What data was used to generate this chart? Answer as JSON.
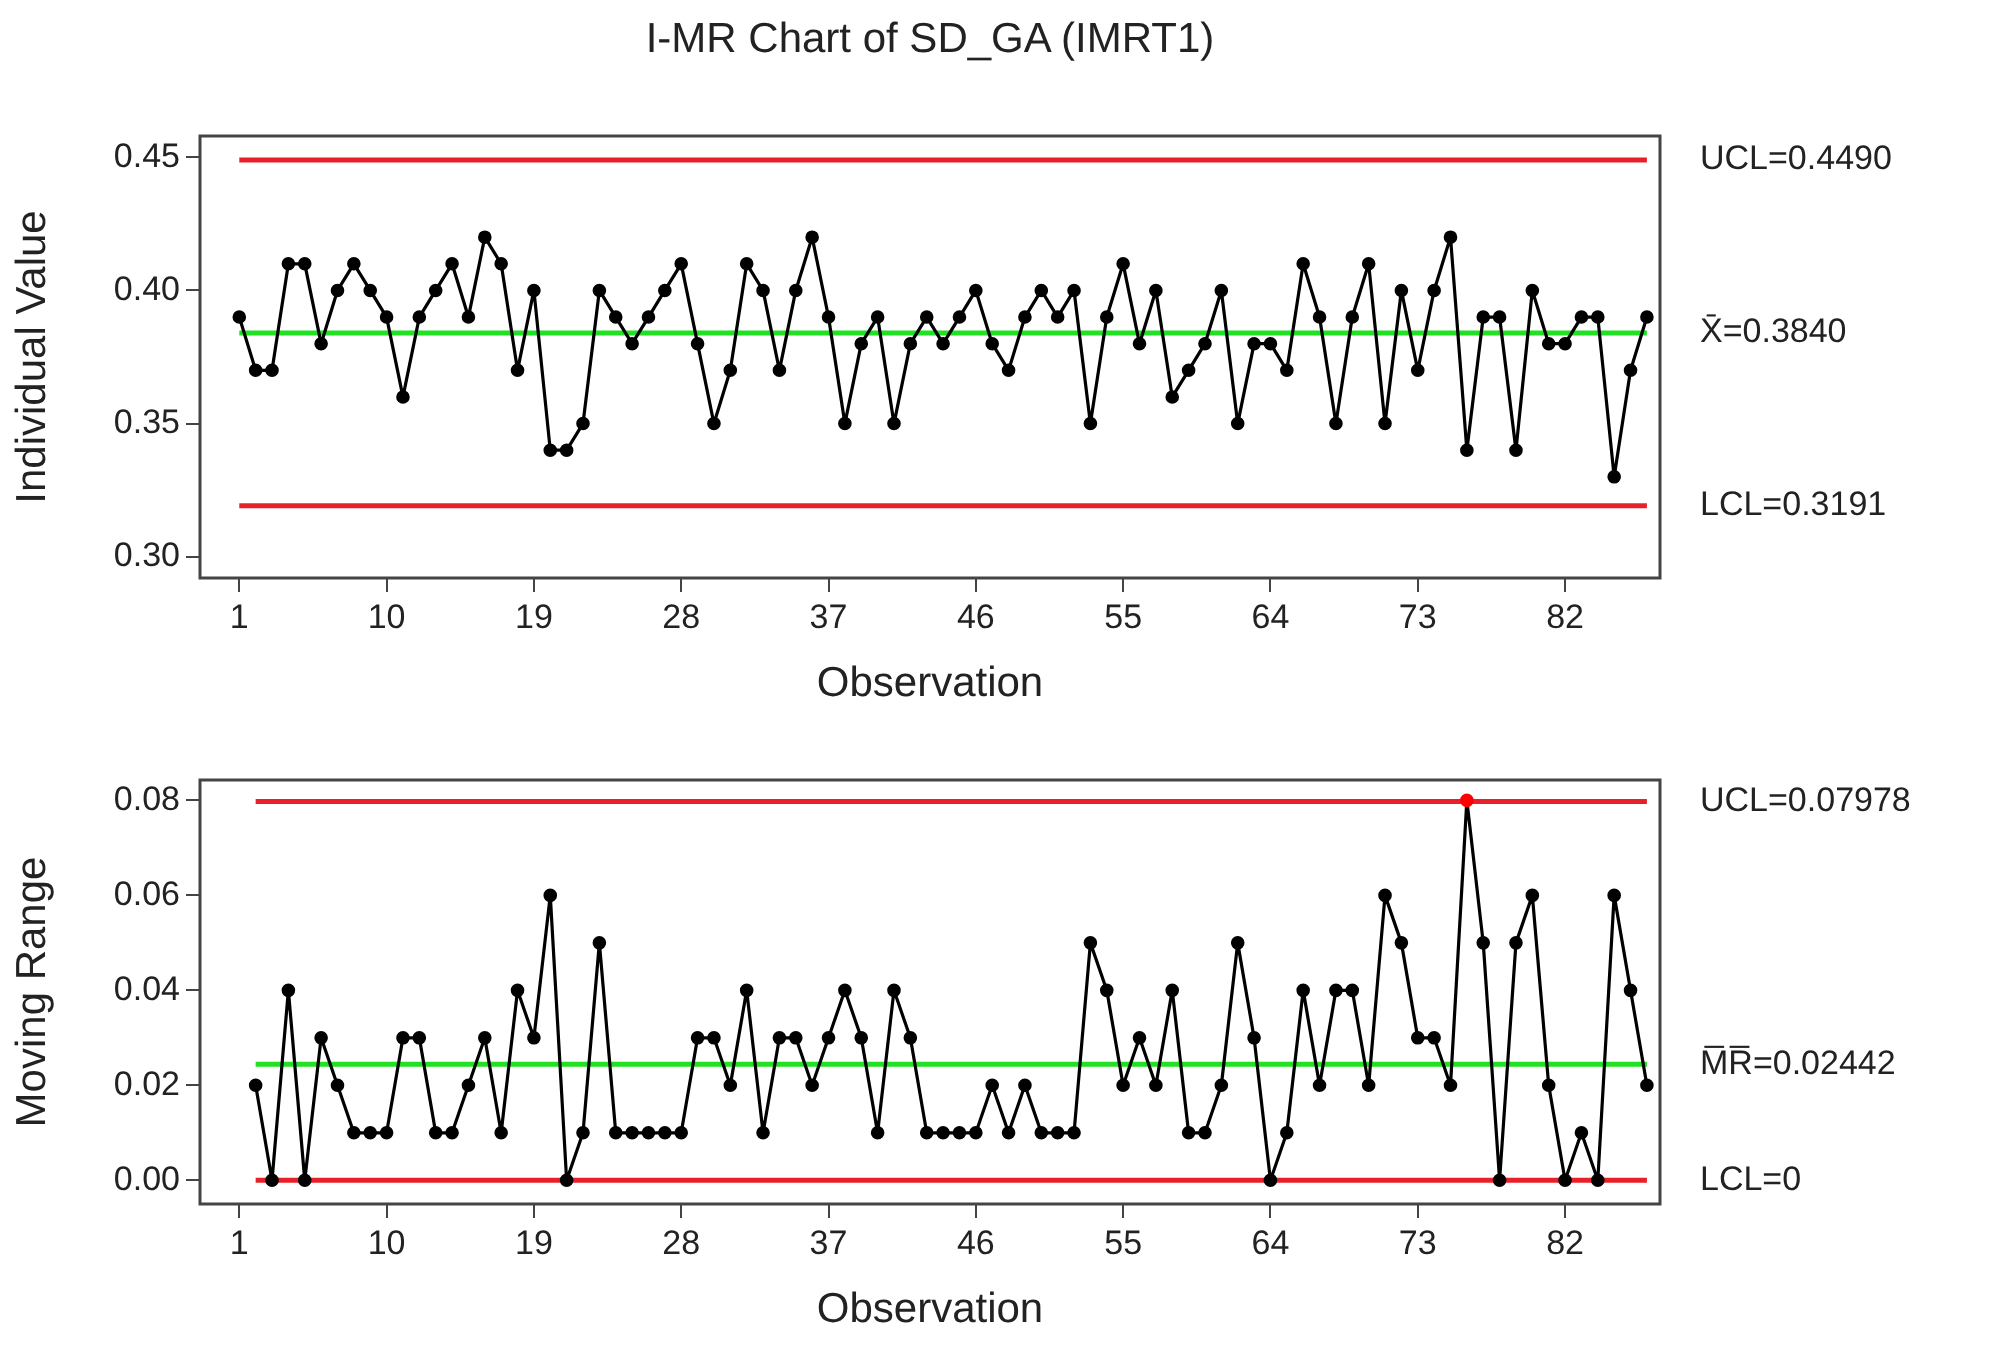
{
  "chart_data": [
    {
      "type": "line",
      "title": "I-MR Chart of SD_GA (IMRT1)",
      "xlabel": "Observation",
      "ylabel": "Individual Value",
      "marker": "circle",
      "line_style": "solid",
      "legend": false,
      "grid": false,
      "xlim": [
        -1.4,
        87.8
      ],
      "xticks": [
        1,
        10,
        19,
        28,
        37,
        46,
        55,
        64,
        73,
        82
      ],
      "ylim": [
        0.292,
        0.458
      ],
      "yticks": [
        {
          "value": 0.3,
          "label": "0.30"
        },
        {
          "value": 0.35,
          "label": "0.35"
        },
        {
          "value": 0.4,
          "label": "0.40"
        },
        {
          "value": 0.45,
          "label": "0.45"
        }
      ],
      "x": [
        1,
        2,
        3,
        4,
        5,
        6,
        7,
        8,
        9,
        10,
        11,
        12,
        13,
        14,
        15,
        16,
        17,
        18,
        19,
        20,
        21,
        22,
        23,
        24,
        25,
        26,
        27,
        28,
        29,
        30,
        31,
        32,
        33,
        34,
        35,
        36,
        37,
        38,
        39,
        40,
        41,
        42,
        43,
        44,
        45,
        46,
        47,
        48,
        49,
        50,
        51,
        52,
        53,
        54,
        55,
        56,
        57,
        58,
        59,
        60,
        61,
        62,
        63,
        64,
        65,
        66,
        67,
        68,
        69,
        70,
        71,
        72,
        73,
        74,
        75,
        76,
        77,
        78,
        79,
        80,
        81,
        82,
        83,
        84,
        85,
        86,
        87
      ],
      "series": [
        {
          "color": "#000000",
          "values": [
            0.39,
            0.37,
            0.37,
            0.41,
            0.41,
            0.38,
            0.4,
            0.41,
            0.4,
            0.39,
            0.36,
            0.39,
            0.4,
            0.41,
            0.39,
            0.42,
            0.41,
            0.37,
            0.4,
            0.34,
            0.34,
            0.35,
            0.4,
            0.39,
            0.38,
            0.39,
            0.4,
            0.41,
            0.38,
            0.35,
            0.37,
            0.41,
            0.4,
            0.37,
            0.4,
            0.42,
            0.39,
            0.35,
            0.38,
            0.39,
            0.35,
            0.38,
            0.39,
            0.38,
            0.39,
            0.4,
            0.38,
            0.37,
            0.39,
            0.4,
            0.39,
            0.4,
            0.35,
            0.39,
            0.41,
            0.38,
            0.4,
            0.36,
            0.37,
            0.38,
            0.4,
            0.35,
            0.38,
            0.38,
            0.37,
            0.41,
            0.39,
            0.35,
            0.39,
            0.41,
            0.35,
            0.4,
            0.37,
            0.4,
            0.42,
            0.34,
            0.39,
            0.39,
            0.34,
            0.4,
            0.38,
            0.38,
            0.39,
            0.39,
            0.33,
            0.37,
            0.39
          ]
        }
      ],
      "ref_lines": [
        {
          "axis": "y",
          "value": 0.449,
          "label": "UCL=0.4490",
          "color": "#e8202a"
        },
        {
          "axis": "y",
          "value": 0.384,
          "label": "X̄=0.3840",
          "color": "#22e022"
        },
        {
          "axis": "y",
          "value": 0.3191,
          "label": "LCL=0.3191",
          "color": "#e8202a"
        }
      ]
    },
    {
      "type": "line",
      "xlabel": "Observation",
      "ylabel": "Moving Range",
      "marker": "circle",
      "line_style": "solid",
      "legend": false,
      "grid": false,
      "xlim": [
        -1.4,
        87.8
      ],
      "xticks": [
        1,
        10,
        19,
        28,
        37,
        46,
        55,
        64,
        73,
        82
      ],
      "ylim": [
        -0.005,
        0.0843
      ],
      "yticks": [
        {
          "value": 0,
          "label": "0.00"
        },
        {
          "value": 0.02,
          "label": "0.02"
        },
        {
          "value": 0.04,
          "label": "0.04"
        },
        {
          "value": 0.06,
          "label": "0.06"
        },
        {
          "value": 0.08,
          "label": "0.08"
        }
      ],
      "x": [
        2,
        3,
        4,
        5,
        6,
        7,
        8,
        9,
        10,
        11,
        12,
        13,
        14,
        15,
        16,
        17,
        18,
        19,
        20,
        21,
        22,
        23,
        24,
        25,
        26,
        27,
        28,
        29,
        30,
        31,
        32,
        33,
        34,
        35,
        36,
        37,
        38,
        39,
        40,
        41,
        42,
        43,
        44,
        45,
        46,
        47,
        48,
        49,
        50,
        51,
        52,
        53,
        54,
        55,
        56,
        57,
        58,
        59,
        60,
        61,
        62,
        63,
        64,
        65,
        66,
        67,
        68,
        69,
        70,
        71,
        72,
        73,
        74,
        75,
        76,
        77,
        78,
        79,
        80,
        81,
        82,
        83,
        84,
        85,
        86,
        87
      ],
      "series": [
        {
          "color": "#000000",
          "values": [
            0.02,
            0,
            0.04,
            0,
            0.03,
            0.02,
            0.01,
            0.01,
            0.01,
            0.03,
            0.03,
            0.01,
            0.01,
            0.02,
            0.03,
            0.01,
            0.04,
            0.03,
            0.06,
            0,
            0.01,
            0.05,
            0.01,
            0.01,
            0.01,
            0.01,
            0.01,
            0.03,
            0.03,
            0.02,
            0.04,
            0.01,
            0.03,
            0.03,
            0.02,
            0.03,
            0.04,
            0.03,
            0.01,
            0.04,
            0.03,
            0.01,
            0.01,
            0.01,
            0.01,
            0.02,
            0.01,
            0.02,
            0.01,
            0.01,
            0.01,
            0.05,
            0.04,
            0.02,
            0.03,
            0.02,
            0.04,
            0.01,
            0.01,
            0.02,
            0.05,
            0.03,
            0,
            0.01,
            0.04,
            0.02,
            0.04,
            0.04,
            0.02,
            0.06,
            0.05,
            0.03,
            0.03,
            0.02,
            0.08,
            0.05,
            0,
            0.05,
            0.06,
            0.02,
            0,
            0.01,
            0,
            0.06,
            0.04,
            0.02
          ],
          "colors": [
            "#000000",
            "#000000",
            "#000000",
            "#000000",
            "#000000",
            "#000000",
            "#000000",
            "#000000",
            "#000000",
            "#000000",
            "#000000",
            "#000000",
            "#000000",
            "#000000",
            "#000000",
            "#000000",
            "#000000",
            "#000000",
            "#000000",
            "#000000",
            "#000000",
            "#000000",
            "#000000",
            "#000000",
            "#000000",
            "#000000",
            "#000000",
            "#000000",
            "#000000",
            "#000000",
            "#000000",
            "#000000",
            "#000000",
            "#000000",
            "#000000",
            "#000000",
            "#000000",
            "#000000",
            "#000000",
            "#000000",
            "#000000",
            "#000000",
            "#000000",
            "#000000",
            "#000000",
            "#000000",
            "#000000",
            "#000000",
            "#000000",
            "#000000",
            "#000000",
            "#000000",
            "#000000",
            "#000000",
            "#000000",
            "#000000",
            "#000000",
            "#000000",
            "#000000",
            "#000000",
            "#000000",
            "#000000",
            "#000000",
            "#000000",
            "#000000",
            "#000000",
            "#000000",
            "#000000",
            "#000000",
            "#000000",
            "#000000",
            "#000000",
            "#000000",
            "#000000",
            "#ff0000",
            "#000000",
            "#000000",
            "#000000",
            "#000000",
            "#000000",
            "#000000",
            "#000000",
            "#000000",
            "#000000",
            "#000000",
            "#000000"
          ]
        }
      ],
      "ref_lines": [
        {
          "axis": "y",
          "value": 0.07978,
          "label": "UCL=0.07978",
          "color": "#e8202a"
        },
        {
          "axis": "y",
          "value": 0.02442,
          "label": "M̅R̅=0.02442",
          "color": "#22e022"
        },
        {
          "axis": "y",
          "value": 0,
          "label": "LCL=0",
          "color": "#e8202a"
        }
      ]
    }
  ]
}
